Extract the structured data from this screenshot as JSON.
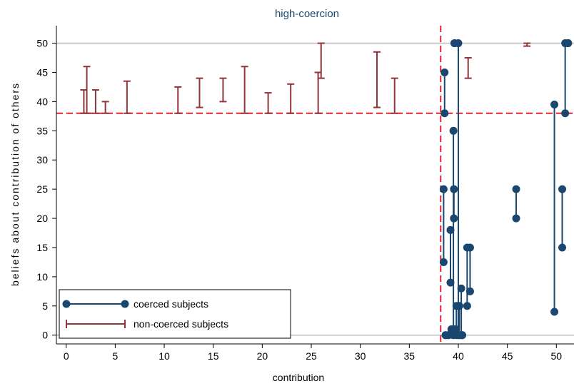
{
  "chart_data": {
    "type": "scatter",
    "title": "high-coercion",
    "xlabel": "contribution",
    "ylabel": "beliefs about contribution of others",
    "xlim": [
      -1,
      51.8
    ],
    "ylim": [
      -1.5,
      53
    ],
    "x_ticks": [
      0,
      5,
      10,
      15,
      20,
      25,
      30,
      35,
      40,
      45,
      50
    ],
    "y_ticks": [
      0,
      5,
      10,
      15,
      20,
      25,
      30,
      35,
      40,
      45,
      50
    ],
    "reference_lines": {
      "horizontal_gray": [
        0,
        50
      ],
      "horizontal_red_dashed": 38,
      "vertical_red_dashed": 38.2
    },
    "colors": {
      "coerced": "#1a476f",
      "non_coerced": "#90353b",
      "reference_dashed": "#e8212b",
      "gridline": "#bdbdbd"
    },
    "legend": {
      "placement": "bottom-left",
      "entries": [
        "coerced subjects",
        "non-coerced subjects"
      ]
    },
    "series": [
      {
        "name": "coerced subjects",
        "style": "dumbbell",
        "segments": [
          {
            "x": 38.5,
            "low": 12.5,
            "high": 25
          },
          {
            "x": 38.6,
            "low": 38,
            "high": 45
          },
          {
            "x": 38.7,
            "low": 0,
            "high": 0
          },
          {
            "x": 39.0,
            "low": 0,
            "high": 0
          },
          {
            "x": 39.2,
            "low": 9,
            "high": 18
          },
          {
            "x": 39.3,
            "low": 1,
            "high": 1
          },
          {
            "x": 39.5,
            "low": 0,
            "high": 35
          },
          {
            "x": 39.55,
            "low": 20,
            "high": 25
          },
          {
            "x": 39.6,
            "low": 50,
            "high": 50
          },
          {
            "x": 39.7,
            "low": 1,
            "high": 1
          },
          {
            "x": 39.8,
            "low": 0,
            "high": 5
          },
          {
            "x": 40.0,
            "low": 0,
            "high": 50
          },
          {
            "x": 40.1,
            "low": 0,
            "high": 5
          },
          {
            "x": 40.3,
            "low": 0,
            "high": 8
          },
          {
            "x": 40.4,
            "low": 0,
            "high": 0
          },
          {
            "x": 40.9,
            "low": 5,
            "high": 15
          },
          {
            "x": 41.2,
            "low": 7.5,
            "high": 15
          },
          {
            "x": 45.9,
            "low": 20,
            "high": 25
          },
          {
            "x": 49.8,
            "low": 4,
            "high": 39.5
          },
          {
            "x": 50.6,
            "low": 15,
            "high": 25
          },
          {
            "x": 50.9,
            "low": 38,
            "high": 50
          },
          {
            "x": 51.2,
            "low": 50,
            "high": 50
          }
        ]
      },
      {
        "name": "non-coerced subjects",
        "style": "capped-range",
        "segments": [
          {
            "x": 1.8,
            "low": 38,
            "high": 42
          },
          {
            "x": 2.1,
            "low": 38,
            "high": 46
          },
          {
            "x": 3.0,
            "low": 38,
            "high": 42
          },
          {
            "x": 4.0,
            "low": 38,
            "high": 40
          },
          {
            "x": 6.2,
            "low": 38,
            "high": 43.5
          },
          {
            "x": 11.4,
            "low": 38,
            "high": 42.5
          },
          {
            "x": 13.6,
            "low": 39,
            "high": 44
          },
          {
            "x": 16.0,
            "low": 40,
            "high": 44
          },
          {
            "x": 18.2,
            "low": 38,
            "high": 46
          },
          {
            "x": 20.6,
            "low": 38,
            "high": 41.5
          },
          {
            "x": 22.9,
            "low": 38,
            "high": 43
          },
          {
            "x": 25.7,
            "low": 38,
            "high": 45
          },
          {
            "x": 26.0,
            "low": 44,
            "high": 50
          },
          {
            "x": 31.7,
            "low": 39,
            "high": 48.5
          },
          {
            "x": 33.5,
            "low": 38,
            "high": 44
          },
          {
            "x": 41.0,
            "low": 44,
            "high": 47.5
          },
          {
            "x": 47.0,
            "low": 49.5,
            "high": 50
          }
        ]
      }
    ]
  }
}
